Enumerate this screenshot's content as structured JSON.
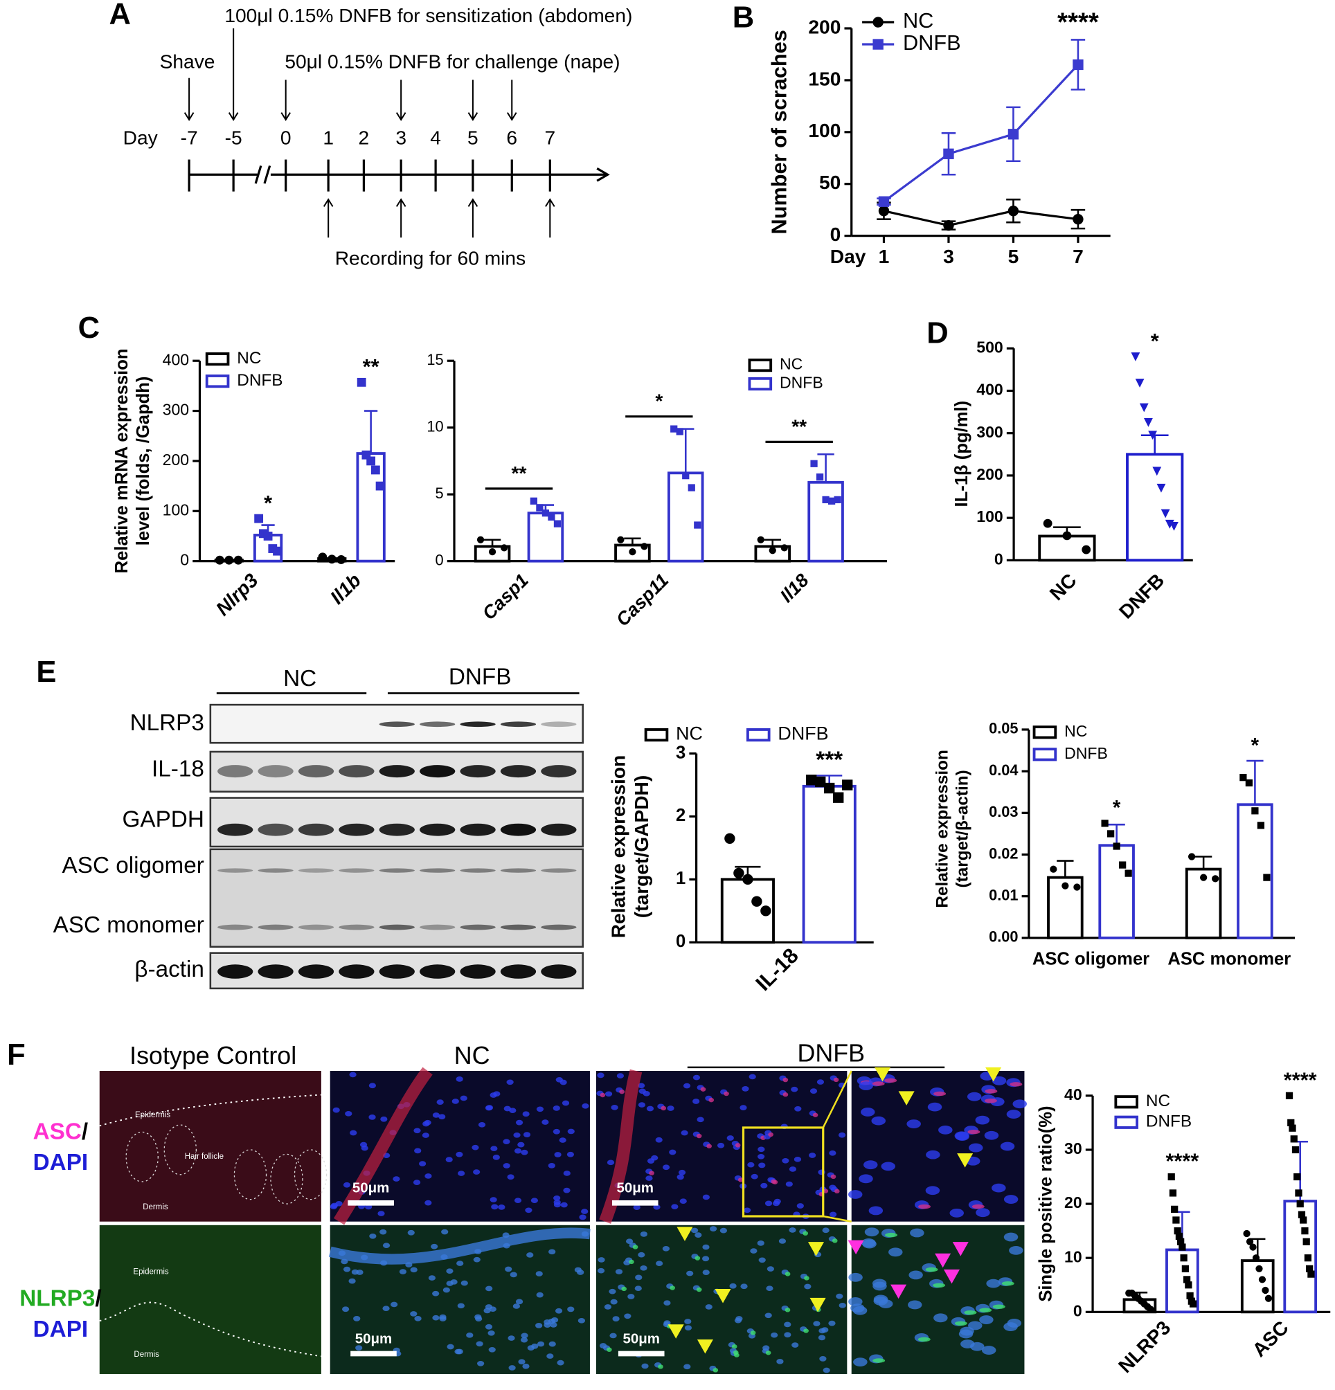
{
  "panel_labels": [
    "A",
    "B",
    "C",
    "D",
    "E",
    "F"
  ],
  "timeline": {
    "day_label": "Day",
    "days": [
      "-7",
      "-5",
      "0",
      "1",
      "2",
      "3",
      "4",
      "5",
      "6",
      "7"
    ],
    "events": [
      "Shave",
      "100μl 0.15% DNFB for sensitization (abdomen)",
      "50μl 0.15% DNFB for challenge (nape)",
      "Recording for 60 mins"
    ]
  },
  "chart_data": [
    {
      "type": "line",
      "x": [
        1,
        3,
        5,
        7
      ],
      "xlim": [
        0,
        8
      ],
      "xticks": [
        1,
        3,
        5,
        7
      ],
      "xlabel": "Day",
      "ylabel": "Number of scraches",
      "ylim": [
        0,
        200
      ],
      "yticks": [
        0,
        50,
        100,
        150,
        200
      ],
      "series": [
        {
          "name": "NC",
          "color": "#000000",
          "marker": "circle",
          "values": [
            24,
            10,
            24,
            16
          ],
          "errors": [
            8,
            4,
            11,
            9
          ]
        },
        {
          "name": "DNFB",
          "color": "#3b3bcf",
          "marker": "square",
          "values": [
            33,
            79,
            98,
            165
          ],
          "errors": [
            3,
            20,
            26,
            24
          ],
          "significance": [
            null,
            null,
            null,
            "****"
          ]
        }
      ]
    },
    {
      "type": "bar",
      "categories": [
        "Nlrp3",
        "Il1b"
      ],
      "ylabel": [
        "Relative mRNA expression",
        "level (folds, /Gapdh)"
      ],
      "ylim": [
        0,
        400
      ],
      "yticks": [
        0,
        100,
        200,
        300,
        400
      ],
      "series": [
        {
          "name": "NC",
          "color": "#000000",
          "marker": "circle",
          "values": [
            2,
            5
          ],
          "points": [
            [
              2,
              2,
              2
            ],
            [
              8,
              4,
              3
            ]
          ]
        },
        {
          "name": "DNFB",
          "color": "#3333cc",
          "marker": "square",
          "values": [
            52,
            215
          ],
          "errors": [
            20,
            85
          ],
          "points": [
            [
              85,
              55,
              50,
              25,
              20
            ],
            [
              357,
              212,
              200,
              182,
              150
            ]
          ],
          "significance": [
            "*",
            "**"
          ]
        }
      ]
    },
    {
      "type": "bar",
      "categories": [
        "Casp1",
        "Casp11",
        "Il18"
      ],
      "ylim": [
        0,
        15
      ],
      "yticks": [
        0,
        5,
        10,
        15
      ],
      "series": [
        {
          "name": "NC",
          "color": "#000000",
          "marker": "circle",
          "values": [
            1.1,
            1.2,
            1.1
          ],
          "errors": [
            0.5,
            0.5,
            0.5
          ],
          "points": [
            [
              1.6,
              0.7,
              1.0
            ],
            [
              1.6,
              0.7,
              1.1
            ],
            [
              1.6,
              0.8,
              1.0
            ]
          ]
        },
        {
          "name": "DNFB",
          "color": "#3333cc",
          "marker": "square",
          "values": [
            3.6,
            6.6,
            5.9
          ],
          "errors": [
            0.6,
            3.3,
            2.1
          ],
          "points": [
            [
              4.5,
              4.0,
              3.6,
              3.3,
              2.8
            ],
            [
              9.9,
              9.7,
              6.4,
              5.5,
              2.7
            ],
            [
              7.3,
              6.3,
              4.6,
              4.5,
              4.6
            ]
          ],
          "significance": [
            "**",
            "*",
            "**"
          ]
        }
      ]
    },
    {
      "type": "bar",
      "categories": [
        "NC",
        "DNFB"
      ],
      "ylabel": "IL-1β (pg/ml)",
      "ylim": [
        0,
        500
      ],
      "yticks": [
        0,
        100,
        200,
        300,
        400,
        500
      ],
      "values": [
        57,
        250
      ],
      "errors": [
        21,
        45
      ],
      "colors": [
        "#000000",
        "#1d1dcc"
      ],
      "markers": [
        "circle",
        "triangle"
      ],
      "points": [
        [
          87,
          58,
          25
        ],
        [
          480,
          418,
          360,
          325,
          295,
          210,
          170,
          110,
          85,
          80
        ]
      ],
      "significance": [
        null,
        "*"
      ]
    },
    {
      "type": "bar",
      "categories": [
        "IL-18"
      ],
      "ylabel": [
        "Relative expression",
        "(target/GAPDH)"
      ],
      "ylim": [
        0,
        3
      ],
      "yticks": [
        0,
        1,
        2,
        3
      ],
      "series": [
        {
          "name": "NC",
          "color": "#000000",
          "marker": "circle",
          "point_color": "#000000",
          "values": [
            1.0
          ],
          "errors": [
            0.2
          ],
          "points": [
            [
              1.65,
              1.1,
              1.0,
              0.65,
              0.5
            ]
          ]
        },
        {
          "name": "DNFB",
          "color": "#3333cc",
          "marker": "square",
          "point_color": "#000000",
          "values": [
            2.48
          ],
          "errors": [
            0.17
          ],
          "points": [
            [
              2.58,
              2.55,
              2.45,
              2.3,
              2.5
            ]
          ],
          "significance": [
            "***"
          ]
        }
      ]
    },
    {
      "type": "bar",
      "categories": [
        "ASC oligomer",
        "ASC monomer"
      ],
      "ylabel": [
        "Relative expression",
        "(target/β-actin)"
      ],
      "ylim": [
        0,
        0.05
      ],
      "yticks": [
        {
          "value": 0,
          "label": "0.00"
        },
        0.01,
        0.02,
        0.03,
        0.04,
        0.05
      ],
      "series": [
        {
          "name": "NC",
          "color": "#000000",
          "marker": "circle",
          "point_color": "#000000",
          "values": [
            0.0145,
            0.0165
          ],
          "errors": [
            0.004,
            0.003
          ],
          "points": [
            [
              0.0165,
              0.0125,
              0.0122
            ],
            [
              0.0195,
              0.0145,
              0.0142
            ]
          ]
        },
        {
          "name": "DNFB",
          "color": "#3333cc",
          "marker": "square",
          "point_color": "#000000",
          "values": [
            0.0222,
            0.032
          ],
          "errors": [
            0.005,
            0.0105
          ],
          "points": [
            [
              0.0275,
              0.025,
              0.022,
              0.0175,
              0.0155
            ],
            [
              0.0385,
              0.0372,
              0.0305,
              0.027,
              0.0145
            ]
          ],
          "significance": [
            "*",
            "*"
          ]
        }
      ]
    },
    {
      "type": "bar",
      "categories": [
        "NLRP3",
        "ASC"
      ],
      "ylabel": "Single positive ratio(%)",
      "ylim": [
        0,
        40
      ],
      "yticks": [
        0,
        10,
        20,
        30,
        40
      ],
      "series": [
        {
          "name": "NC",
          "color": "#000000",
          "marker": "circle",
          "point_color": "#000000",
          "values": [
            2.3,
            9.5
          ],
          "errors": [
            1.3,
            4
          ],
          "points": [
            [
              3.5,
              3.5,
              3.0,
              2.5,
              2.0,
              1.5,
              1.0,
              0.5
            ],
            [
              14.5,
              13,
              12,
              10,
              8,
              6,
              4,
              2.5
            ]
          ]
        },
        {
          "name": "DNFB",
          "color": "#3333cc",
          "marker": "square",
          "point_color": "#000000",
          "values": [
            11.5,
            20.5
          ],
          "errors": [
            7,
            11
          ],
          "points": [
            [
              25,
              22,
              19,
              17,
              15,
              14,
              13,
              12,
              10,
              8,
              6,
              5,
              3,
              2,
              1.5
            ],
            [
              40,
              35,
              34,
              32,
              30,
              25,
              22,
              20,
              18,
              17,
              15,
              13,
              10,
              8,
              7
            ]
          ],
          "significance": [
            "****",
            "****"
          ]
        }
      ]
    }
  ],
  "western_blot": {
    "groups": [
      "NC",
      "DNFB"
    ],
    "rows": [
      "NLRP3",
      "IL-18",
      "GAPDH",
      "ASC oligomer",
      "ASC monomer",
      "β-actin"
    ]
  },
  "immunofluorescence": {
    "columns": [
      "Isotype Control",
      "NC",
      "DNFB"
    ],
    "stains": [
      [
        "ASC",
        "/",
        "DAPI"
      ],
      [
        "NLRP3",
        "/",
        "DAPI"
      ]
    ],
    "tissue_labels": [
      "Epidermis",
      "Hair follicle",
      "Dermis"
    ],
    "scale_bar": "50μm"
  }
}
